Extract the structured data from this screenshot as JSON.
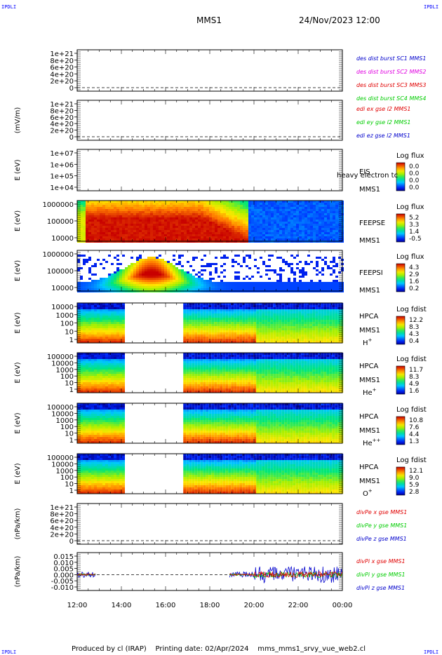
{
  "corner_label": "IPDLI",
  "header": {
    "spacecraft": "MMS1",
    "datetime": "24/Nov/2023 12:00"
  },
  "footer": {
    "produced_by": "Produced by cl (IRAP)",
    "printing_date": "Printing date: 02/Apr/2024",
    "filename": "mms_mms1_srvy_vue_web2.cl"
  },
  "colors": {
    "red": "#e00000",
    "magenta": "#e000e0",
    "green": "#00cc00",
    "blue": "#0000cc"
  },
  "chart_data": {
    "type": "heatmap",
    "x_ticks": [
      "12:00",
      "14:00",
      "16:00",
      "18:00",
      "20:00",
      "22:00",
      "00:00"
    ],
    "x_hours": [
      12,
      24
    ],
    "panels": [
      {
        "id": "des-dist",
        "kind": "line",
        "ylabel": "",
        "yticks": [
          "1e+21",
          "8e+20",
          "6e+20",
          "4e+20",
          "2e+20",
          "0"
        ],
        "legend": [
          {
            "text": "des dist burst SC1 MMS1",
            "color": "blue"
          },
          {
            "text": "des dist burst SC2 MMS2",
            "color": "magenta"
          },
          {
            "text": "des dist burst SC3 MMS3",
            "color": "red"
          },
          {
            "text": "des dist burst SC4 MMS4",
            "color": "green"
          }
        ]
      },
      {
        "id": "edi",
        "kind": "line",
        "ylabel": "(mV/m)",
        "yticks": [
          "1e+21",
          "8e+20",
          "6e+20",
          "4e+20",
          "2e+20",
          "0"
        ],
        "legend": [
          {
            "text": "edi ex gse l2 MMS1",
            "color": "red"
          },
          {
            "text": "edi ey gse l2 MMS1",
            "color": "green"
          },
          {
            "text": "edi ez gse l2 MMS1",
            "color": "blue"
          }
        ]
      },
      {
        "id": "eis",
        "kind": "spec",
        "ylabel": "E (eV)",
        "yticks": [
          "1e+07",
          "1e+06",
          "1e+05",
          "1e+04"
        ],
        "labels": [
          "EIS",
          "MMS1"
        ],
        "overlay": "heavy electron tc",
        "cbar_title": "Log flux",
        "cbar_ticks": [
          "0.0",
          "0.0",
          "0.0",
          "0.0"
        ],
        "segments": []
      },
      {
        "id": "feepse",
        "kind": "spec",
        "ylabel": "E (eV)",
        "yticks": [
          "1000000",
          "100000",
          "10000"
        ],
        "labels": [
          "FEEPSE",
          "MMS1"
        ],
        "cbar_title": "Log flux",
        "cbar_ticks": [
          "5.2",
          "3.3",
          "1.4",
          "-0.5"
        ],
        "segments": [
          [
            12,
            24
          ]
        ],
        "profile": "feepse"
      },
      {
        "id": "feepsi",
        "kind": "spec",
        "ylabel": "E (eV)",
        "yticks": [
          "1000000",
          "100000",
          "10000"
        ],
        "labels": [
          "FEEPSI",
          "MMS1"
        ],
        "cbar_title": "Log flux",
        "cbar_ticks": [
          "4.3",
          "2.9",
          "1.6",
          "0.2"
        ],
        "segments": [
          [
            12,
            24
          ]
        ],
        "profile": "feepsi"
      },
      {
        "id": "hpca-h",
        "kind": "spec",
        "ylabel": "E (eV)",
        "yticks": [
          "10000",
          "1000",
          "100",
          "10",
          "1"
        ],
        "labels": [
          "HPCA",
          "MMS1"
        ],
        "species": "H",
        "species_sup": "+",
        "cbar_title": "Log fdist",
        "cbar_ticks": [
          "12.2",
          "8.3",
          "4.3",
          "0.4"
        ],
        "segments": [
          [
            12,
            14.15
          ],
          [
            16.8,
            24
          ]
        ],
        "profile": "hpca"
      },
      {
        "id": "hpca-he",
        "kind": "spec",
        "ylabel": "E (eV)",
        "yticks": [
          "100000",
          "10000",
          "1000",
          "100",
          "10",
          "1"
        ],
        "labels": [
          "HPCA",
          "MMS1"
        ],
        "species": "He",
        "species_sup": "+",
        "cbar_title": "Log fdist",
        "cbar_ticks": [
          "11.7",
          "8.3",
          "4.9",
          "1.6"
        ],
        "segments": [
          [
            12,
            14.15
          ],
          [
            16.8,
            24
          ]
        ],
        "profile": "hpca"
      },
      {
        "id": "hpca-he2",
        "kind": "spec",
        "ylabel": "E (eV)",
        "yticks": [
          "100000",
          "10000",
          "1000",
          "100",
          "10",
          "1"
        ],
        "labels": [
          "HPCA",
          "MMS1"
        ],
        "species": "He",
        "species_sup": "++",
        "cbar_title": "Log fdist",
        "cbar_ticks": [
          "10.8",
          "7.6",
          "4.4",
          "1.3"
        ],
        "segments": [
          [
            12,
            14.15
          ],
          [
            16.8,
            24
          ]
        ],
        "profile": "hpca"
      },
      {
        "id": "hpca-o",
        "kind": "spec",
        "ylabel": "E (eV)",
        "yticks": [
          "100000",
          "10000",
          "1000",
          "100",
          "10",
          "1"
        ],
        "labels": [
          "HPCA",
          "MMS1"
        ],
        "species": "O",
        "species_sup": "+",
        "cbar_title": "Log fdist",
        "cbar_ticks": [
          "12.1",
          "9.0",
          "5.9",
          "2.8"
        ],
        "segments": [
          [
            12,
            14.15
          ],
          [
            16.8,
            24
          ]
        ],
        "profile": "hpca"
      },
      {
        "id": "divpe",
        "kind": "line",
        "ylabel": "(nPa/km)",
        "yticks": [
          "1e+21",
          "8e+20",
          "6e+20",
          "4e+20",
          "2e+20",
          "0"
        ],
        "legend": [
          {
            "text": "divPe x gse MMS1",
            "color": "red"
          },
          {
            "text": "divPe y gse MMS1",
            "color": "green"
          },
          {
            "text": "divPe z gse MMS1",
            "color": "blue"
          }
        ]
      },
      {
        "id": "divpi",
        "kind": "line",
        "ylabel": "(nPa/km)",
        "yticks": [
          "0.015",
          "0.010",
          "0.005",
          "0.000",
          "-0.005",
          "-0.010"
        ],
        "legend": [
          {
            "text": "divPi x gse MMS1",
            "color": "red"
          },
          {
            "text": "divPi y gse MMS1",
            "color": "green"
          },
          {
            "text": "divPi z gse MMS1",
            "color": "blue"
          }
        ],
        "series_segments": [
          [
            12,
            12.85
          ],
          [
            18.9,
            24
          ]
        ]
      }
    ]
  }
}
